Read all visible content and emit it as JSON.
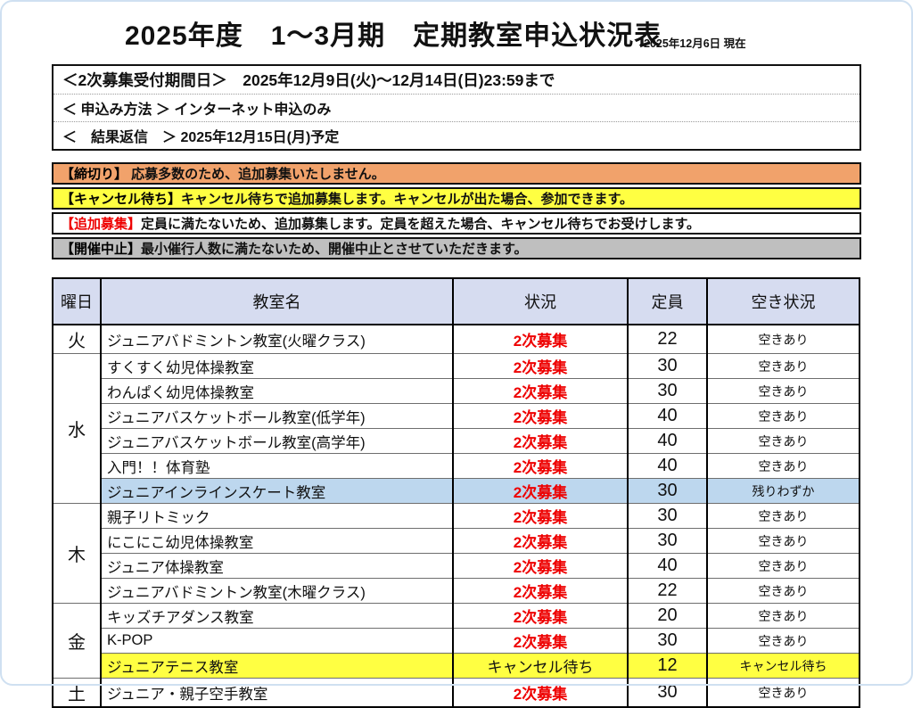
{
  "page": {
    "title": "2025年度　1～3月期　定期教室申込状況表",
    "as_of": "2025年12月6日 現在"
  },
  "notice": {
    "line1": "＜2次募集受付期間日＞　2025年12月9日(火)～12月14日(日)23:59まで",
    "line2": "＜ 申込み方法 ＞ インターネット申込のみ",
    "line3": "＜　結果返信　＞ 2025年12月15日(月)予定"
  },
  "legend": [
    {
      "tag": "【締切り】",
      "text": " 応募多数のため、追加募集いたしません。",
      "bg": "#F1A26B",
      "tag_color": "#000000"
    },
    {
      "tag": "【キャンセル待ち】",
      "text": "キャンセル待ちで追加募集します。キャンセルが出た場合、参加できます。",
      "bg": "#FFFF42",
      "tag_color": "#000000"
    },
    {
      "tag": "【追加募集】",
      "text": "定員に満たないため、追加募集します。定員を超えた場合、キャンセル待ちでお受けします。",
      "bg": "#FFFFFF",
      "tag_color": "#EE0000"
    },
    {
      "tag": "【開催中止】",
      "text": "最小催行人数に満たないため、開催中止とさせていただきます。",
      "bg": "#BFBFBF",
      "tag_color": "#000000"
    }
  ],
  "colors": {
    "status_red": "#EE0000",
    "highlight_blue": "#BDD7EE",
    "highlight_yellow": "#FFFF42",
    "header_bg": "#D6DCF0",
    "legend_orange": "#F1A26B",
    "legend_yellow": "#FFFF42",
    "legend_gray": "#BFBFBF"
  },
  "table": {
    "headers": [
      "曜日",
      "教室名",
      "状況",
      "定員",
      "空き状況"
    ],
    "rows": [
      {
        "day": "火",
        "span": 1,
        "name": "ジュニアバドミントン教室(火曜クラス)",
        "status": "2次募集",
        "status_style": "red",
        "capacity": "22",
        "avail": "空きあり",
        "hl": ""
      },
      {
        "day": "水",
        "span": 6,
        "name": "すくすく幼児体操教室",
        "status": "2次募集",
        "status_style": "red",
        "capacity": "30",
        "avail": "空きあり",
        "hl": ""
      },
      {
        "name": "わんぱく幼児体操教室",
        "status": "2次募集",
        "status_style": "red",
        "capacity": "30",
        "avail": "空きあり",
        "hl": ""
      },
      {
        "name": "ジュニアバスケットボール教室(低学年)",
        "status": "2次募集",
        "status_style": "red",
        "capacity": "40",
        "avail": "空きあり",
        "hl": ""
      },
      {
        "name": "ジュニアバスケットボール教室(高学年)",
        "status": "2次募集",
        "status_style": "red",
        "capacity": "40",
        "avail": "空きあり",
        "hl": ""
      },
      {
        "name": "入門！！体育塾",
        "status": "2次募集",
        "status_style": "red",
        "capacity": "40",
        "avail": "空きあり",
        "hl": ""
      },
      {
        "name": "ジュニアインラインスケート教室",
        "status": "2次募集",
        "status_style": "red",
        "capacity": "30",
        "avail": "残りわずか",
        "hl": "blue"
      },
      {
        "day": "木",
        "span": 4,
        "name": "親子リトミック",
        "status": "2次募集",
        "status_style": "red",
        "capacity": "30",
        "avail": "空きあり",
        "hl": ""
      },
      {
        "name": "にこにこ幼児体操教室",
        "status": "2次募集",
        "status_style": "red",
        "capacity": "30",
        "avail": "空きあり",
        "hl": ""
      },
      {
        "name": "ジュニア体操教室",
        "status": "2次募集",
        "status_style": "red",
        "capacity": "40",
        "avail": "空きあり",
        "hl": ""
      },
      {
        "name": "ジュニアバドミントン教室(木曜クラス)",
        "status": "2次募集",
        "status_style": "red",
        "capacity": "22",
        "avail": "空きあり",
        "hl": ""
      },
      {
        "day": "金",
        "span": 3,
        "name": "キッズチアダンス教室",
        "status": "2次募集",
        "status_style": "red",
        "capacity": "20",
        "avail": "空きあり",
        "hl": ""
      },
      {
        "name": "K-POP",
        "status": "2次募集",
        "status_style": "red",
        "capacity": "30",
        "avail": "空きあり",
        "hl": ""
      },
      {
        "name": "ジュニアテニス教室",
        "status": "キャンセル待ち",
        "status_style": "plain",
        "capacity": "12",
        "avail": "キャンセル待ち",
        "hl": "yellow"
      },
      {
        "day": "土",
        "span": 1,
        "name": "ジュニア・親子空手教室",
        "status": "2次募集",
        "status_style": "red",
        "capacity": "30",
        "avail": "空きあり",
        "hl": ""
      }
    ]
  }
}
